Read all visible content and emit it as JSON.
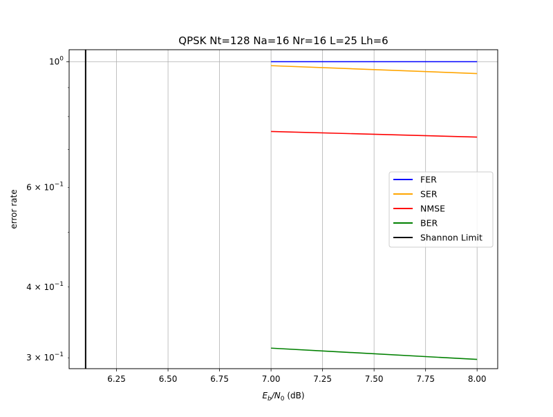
{
  "chart_data": {
    "type": "line",
    "title": "QPSK Nt=128 Na=16 Nr=16 L=25 Lh=6",
    "xlabel": {
      "base": "E",
      "sub1": "b",
      "mid": "/N",
      "sub2": "0",
      "tail": " (dB)"
    },
    "ylabel": "error rate",
    "yscale": "log",
    "xlim": [
      6.02,
      8.1
    ],
    "ylim": [
      0.287,
      1.05
    ],
    "grid": true,
    "x_ticks": [
      {
        "v": 6.25,
        "label": "6.25"
      },
      {
        "v": 6.5,
        "label": "6.50"
      },
      {
        "v": 6.75,
        "label": "6.75"
      },
      {
        "v": 7.0,
        "label": "7.00"
      },
      {
        "v": 7.25,
        "label": "7.25"
      },
      {
        "v": 7.5,
        "label": "7.50"
      },
      {
        "v": 7.75,
        "label": "7.75"
      },
      {
        "v": 8.0,
        "label": "8.00"
      }
    ],
    "y_major_ticks": [
      {
        "v": 1.0,
        "base": "10",
        "exp": "0"
      }
    ],
    "y_minor_ticks": [
      {
        "v": 0.3,
        "coef": "3 × 10",
        "exp": "−1"
      },
      {
        "v": 0.4,
        "coef": "4 × 10",
        "exp": "−1"
      },
      {
        "v": 0.6,
        "coef": "6 × 10",
        "exp": "−1"
      },
      {
        "v": 0.5
      },
      {
        "v": 0.7
      },
      {
        "v": 0.8
      },
      {
        "v": 0.9
      }
    ],
    "series": [
      {
        "name": "FER",
        "color": "#0000ff",
        "x": [
          7.0,
          8.0
        ],
        "y": [
          1.0,
          1.0
        ]
      },
      {
        "name": "SER",
        "color": "#ffa500",
        "x": [
          7.0,
          8.0
        ],
        "y": [
          0.984,
          0.953
        ]
      },
      {
        "name": "NMSE",
        "color": "#ff0000",
        "x": [
          7.0,
          8.0
        ],
        "y": [
          0.753,
          0.736
        ]
      },
      {
        "name": "BER",
        "color": "#008000",
        "x": [
          7.0,
          8.0
        ],
        "y": [
          0.312,
          0.298
        ]
      },
      {
        "name": "Shannon Limit",
        "color": "#000000",
        "vline": 6.1
      }
    ],
    "legend": "center-right"
  }
}
